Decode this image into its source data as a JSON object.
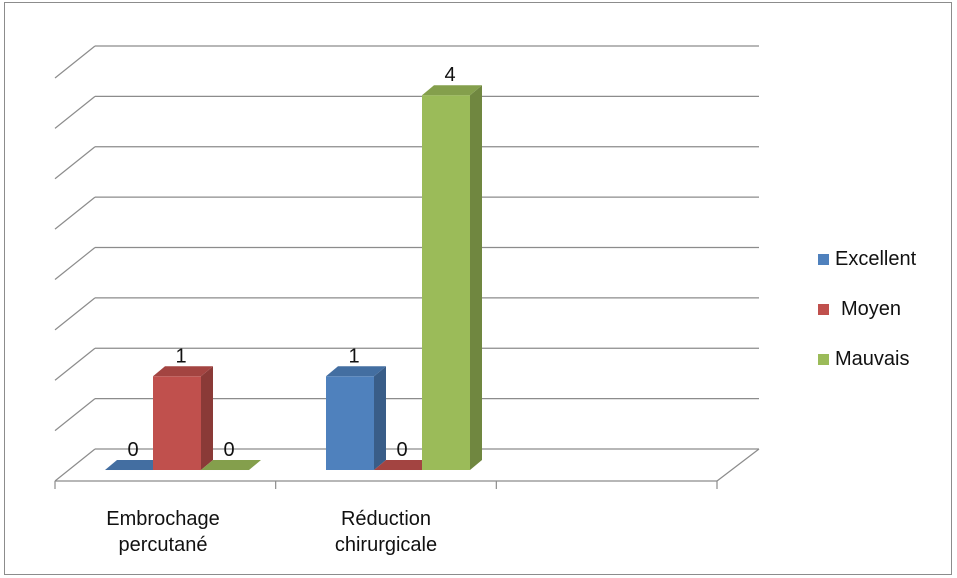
{
  "chart_data": {
    "type": "bar",
    "categories": [
      "Embrochage\npercutané",
      "Réduction\nchirurgicale"
    ],
    "series": [
      {
        "name": "Excellent",
        "values": [
          0,
          1
        ],
        "color": "#4f81bd"
      },
      {
        "name": "Moyen",
        "values": [
          1,
          0
        ],
        "color": "#c0504d"
      },
      {
        "name": "Mauvais",
        "values": [
          0,
          4
        ],
        "color": "#9bbb59"
      }
    ],
    "ylim": [
      0,
      4
    ],
    "grid": true,
    "legend_position": "right",
    "data_labels": true
  }
}
